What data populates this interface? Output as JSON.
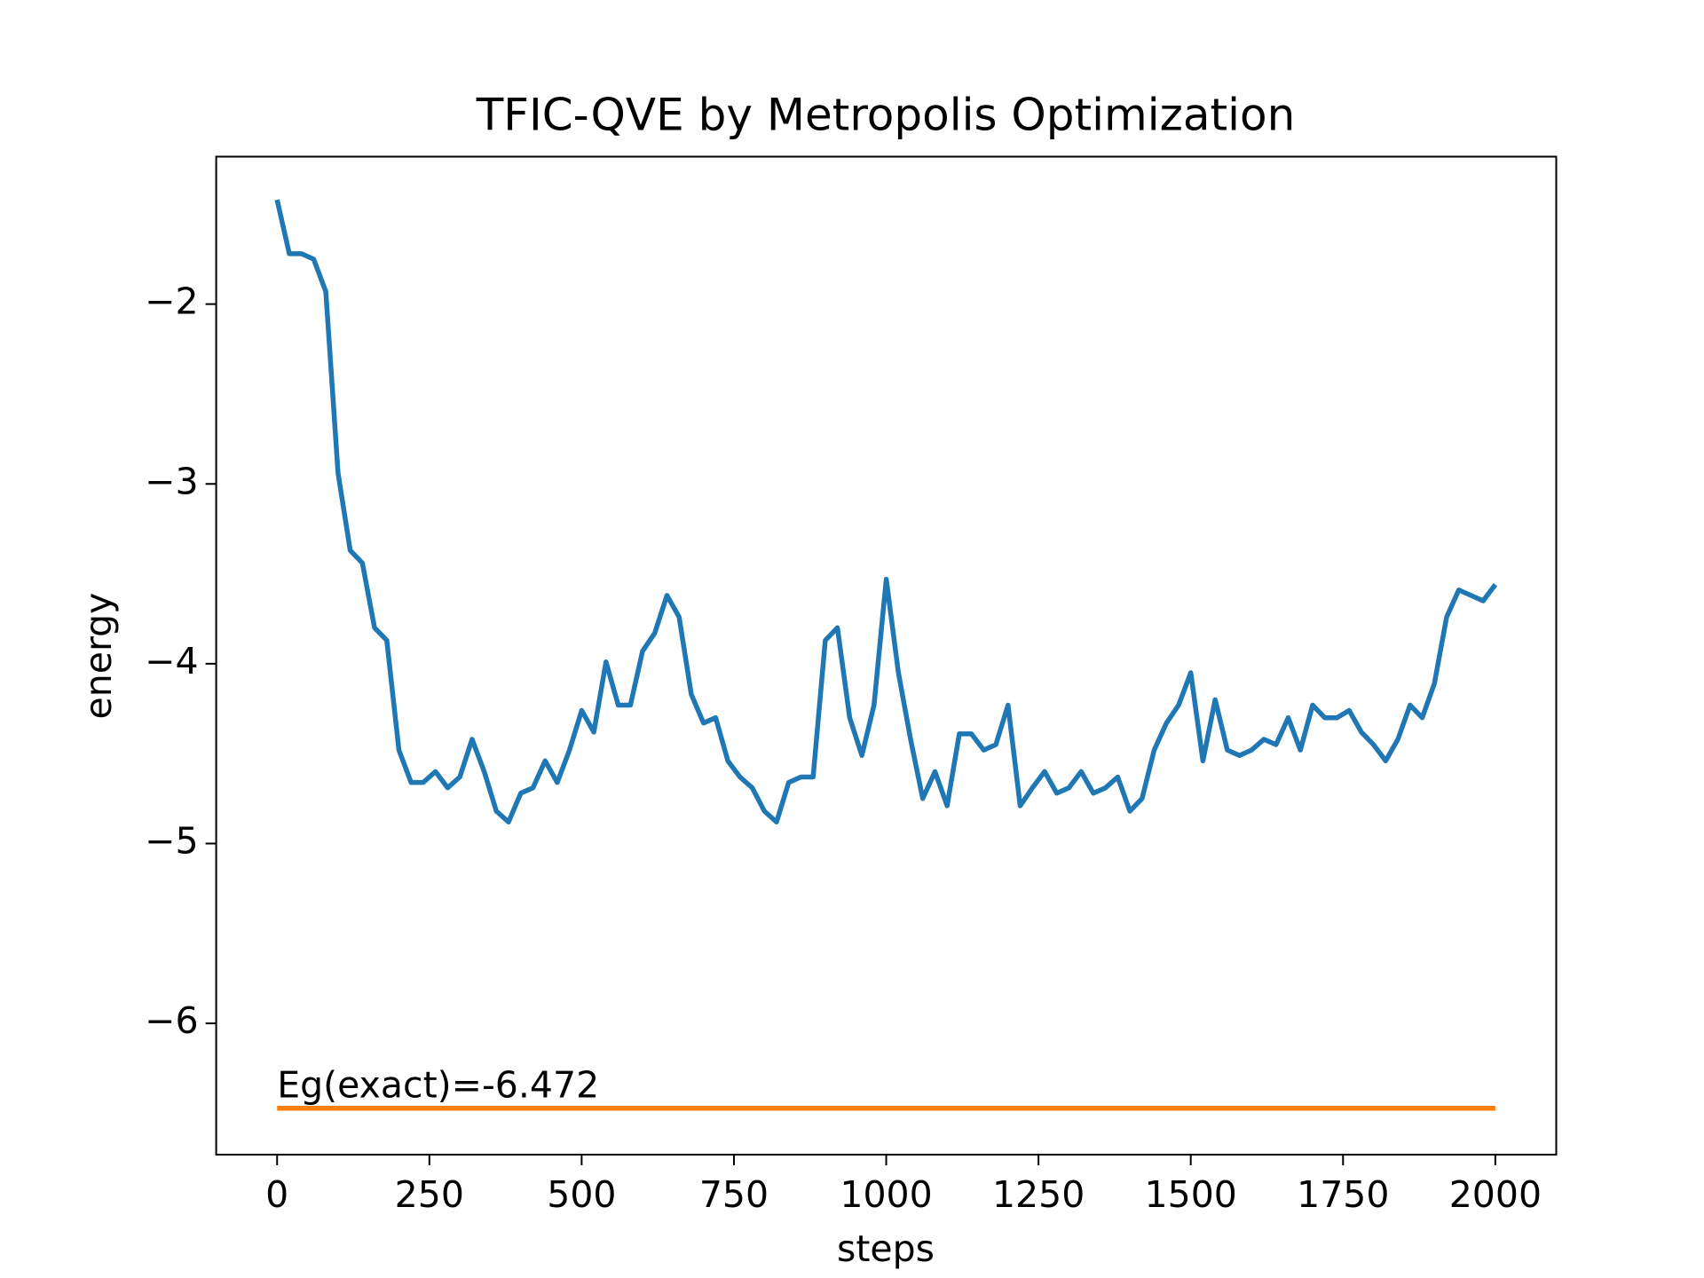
{
  "chart_data": {
    "type": "line",
    "title": "TFIC-QVE by Metropolis Optimization",
    "xlabel": "steps",
    "ylabel": "energy",
    "annotation": "Eg(exact)=-6.472",
    "xlim": [
      -100,
      2100
    ],
    "ylim": [
      -6.73,
      -1.18
    ],
    "xticks": [
      0,
      250,
      500,
      750,
      1000,
      1250,
      1500,
      1750,
      2000
    ],
    "yticks": [
      {
        "value": -6,
        "label": "−6"
      },
      {
        "value": -5,
        "label": "−5"
      },
      {
        "value": -4,
        "label": "−4"
      },
      {
        "value": -3,
        "label": "−3"
      },
      {
        "value": -2,
        "label": "−2"
      }
    ],
    "grid": false,
    "series": [
      {
        "color": "#1f77b4",
        "x": [
          0,
          20,
          40,
          60,
          80,
          100,
          120,
          140,
          160,
          180,
          200,
          220,
          240,
          260,
          280,
          300,
          320,
          340,
          360,
          380,
          400,
          420,
          440,
          460,
          480,
          500,
          520,
          540,
          560,
          580,
          600,
          620,
          640,
          660,
          680,
          700,
          720,
          740,
          760,
          780,
          800,
          820,
          840,
          860,
          880,
          900,
          920,
          940,
          960,
          980,
          1000,
          1020,
          1040,
          1060,
          1080,
          1100,
          1120,
          1140,
          1160,
          1180,
          1200,
          1220,
          1240,
          1260,
          1280,
          1300,
          1320,
          1340,
          1360,
          1380,
          1400,
          1420,
          1440,
          1460,
          1480,
          1500,
          1520,
          1540,
          1560,
          1580,
          1600,
          1620,
          1640,
          1660,
          1680,
          1700,
          1720,
          1740,
          1760,
          1780,
          1800,
          1820,
          1840,
          1860,
          1880,
          1900,
          1920,
          1940,
          1960,
          1980,
          2000
        ],
        "values": [
          -1.42,
          -1.72,
          -1.72,
          -1.75,
          -1.93,
          -2.94,
          -3.37,
          -3.44,
          -3.8,
          -3.87,
          -4.48,
          -4.66,
          -4.66,
          -4.6,
          -4.69,
          -4.63,
          -4.42,
          -4.6,
          -4.82,
          -4.88,
          -4.72,
          -4.69,
          -4.54,
          -4.66,
          -4.48,
          -4.26,
          -4.38,
          -3.99,
          -4.23,
          -4.23,
          -3.93,
          -3.83,
          -3.62,
          -3.74,
          -4.17,
          -4.33,
          -4.3,
          -4.54,
          -4.63,
          -4.69,
          -4.82,
          -4.88,
          -4.66,
          -4.63,
          -4.63,
          -3.87,
          -3.8,
          -4.3,
          -4.51,
          -4.23,
          -3.53,
          -4.05,
          -4.42,
          -4.75,
          -4.6,
          -4.79,
          -4.39,
          -4.39,
          -4.48,
          -4.45,
          -4.23,
          -4.79,
          -4.69,
          -4.6,
          -4.72,
          -4.69,
          -4.6,
          -4.72,
          -4.69,
          -4.63,
          -4.82,
          -4.75,
          -4.48,
          -4.33,
          -4.23,
          -4.05,
          -4.54,
          -4.2,
          -4.48,
          -4.51,
          -4.48,
          -4.42,
          -4.45,
          -4.3,
          -4.48,
          -4.23,
          -4.3,
          -4.3,
          -4.26,
          -4.38,
          -4.45,
          -4.54,
          -4.42,
          -4.23,
          -4.3,
          -4.11,
          -3.74,
          -3.59,
          -3.62,
          -3.65,
          -3.56
        ]
      },
      {
        "color": "#ff7f0e",
        "x": [
          0,
          2000
        ],
        "values": [
          -6.472,
          -6.472
        ]
      }
    ]
  }
}
